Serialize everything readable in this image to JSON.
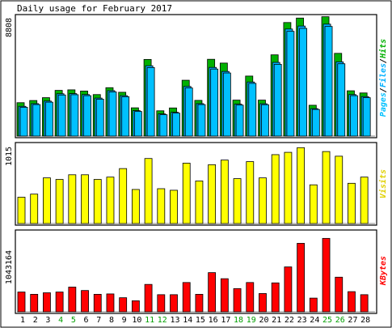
{
  "title": "Daily usage for February 2017",
  "days": [
    "1",
    "2",
    "3",
    "4",
    "5",
    "6",
    "7",
    "8",
    "9",
    "10",
    "11",
    "12",
    "13",
    "14",
    "15",
    "16",
    "17",
    "18",
    "19",
    "20",
    "21",
    "22",
    "23",
    "24",
    "25",
    "26",
    "27",
    "28"
  ],
  "weekend_days": [
    "4",
    "5",
    "11",
    "12",
    "18",
    "19",
    "25",
    "26"
  ],
  "colors": {
    "background": "#ffffff",
    "plot_background": "#ffffff",
    "border": "#000000",
    "hits": "#00b000",
    "files": "#00b0ff",
    "pages": "#00c0ff",
    "visits": "#ffff00",
    "kbytes": "#ff0000",
    "weekend_label": "#00a000",
    "weekday_label": "#000000"
  },
  "panels": {
    "hits": {
      "max_label": "8808",
      "legend": {
        "pages": "Pages",
        "sep1": "/",
        "files": "Files",
        "sep2": "/",
        "hits": "Hits"
      }
    },
    "visits": {
      "max_label": "1015",
      "legend": "Visits"
    },
    "kbytes": {
      "max_label": "1043164",
      "legend": "KBytes"
    }
  },
  "chart_data": [
    {
      "type": "bar",
      "title": "Daily usage for February 2017",
      "categories": [
        "1",
        "2",
        "3",
        "4",
        "5",
        "6",
        "7",
        "8",
        "9",
        "10",
        "11",
        "12",
        "13",
        "14",
        "15",
        "16",
        "17",
        "18",
        "19",
        "20",
        "21",
        "22",
        "23",
        "24",
        "25",
        "26",
        "27",
        "28"
      ],
      "ylim": [
        0,
        8808
      ],
      "series": [
        {
          "name": "Hits",
          "values": [
            2470,
            2630,
            2840,
            3380,
            3420,
            3330,
            3070,
            3580,
            3240,
            2090,
            5670,
            1870,
            2080,
            4130,
            2640,
            5680,
            5400,
            2660,
            4440,
            2660,
            6010,
            8400,
            8730,
            2280,
            8830,
            6120,
            3350,
            3190
          ]
        },
        {
          "name": "Files",
          "values": [
            2200,
            2400,
            2590,
            3130,
            3140,
            3070,
            2810,
            3360,
            2990,
            1880,
            5200,
            1640,
            1760,
            3670,
            2400,
            5080,
            4780,
            2360,
            4000,
            2390,
            5450,
            7920,
            8140,
            2030,
            8280,
            5490,
            3070,
            2920
          ]
        },
        {
          "name": "Pages",
          "values": [
            2130,
            2330,
            2510,
            3040,
            3060,
            2990,
            2730,
            3270,
            2910,
            1820,
            5070,
            1580,
            1700,
            3560,
            2330,
            4960,
            4670,
            2290,
            3900,
            2320,
            5310,
            7750,
            7970,
            1970,
            8110,
            5350,
            2990,
            2840
          ]
        }
      ]
    },
    {
      "type": "bar",
      "categories": [
        "1",
        "2",
        "3",
        "4",
        "5",
        "6",
        "7",
        "8",
        "9",
        "10",
        "11",
        "12",
        "13",
        "14",
        "15",
        "16",
        "17",
        "18",
        "19",
        "20",
        "21",
        "22",
        "23",
        "24",
        "25",
        "26",
        "27",
        "28"
      ],
      "ylim": [
        0,
        1015
      ],
      "series": [
        {
          "name": "Visits",
          "values": [
            340,
            380,
            590,
            570,
            630,
            630,
            570,
            600,
            710,
            440,
            840,
            450,
            430,
            780,
            550,
            760,
            820,
            580,
            800,
            590,
            890,
            920,
            980,
            500,
            930,
            870,
            520,
            600
          ]
        }
      ]
    },
    {
      "type": "bar",
      "categories": [
        "1",
        "2",
        "3",
        "4",
        "5",
        "6",
        "7",
        "8",
        "9",
        "10",
        "11",
        "12",
        "13",
        "14",
        "15",
        "16",
        "17",
        "18",
        "19",
        "20",
        "21",
        "22",
        "23",
        "24",
        "25",
        "26",
        "27",
        "28"
      ],
      "ylim": [
        0,
        1043164
      ],
      "series": [
        {
          "name": "KBytes",
          "values": [
            260000,
            230000,
            250000,
            260000,
            325000,
            280000,
            230000,
            235000,
            185000,
            145000,
            360000,
            225000,
            225000,
            385000,
            230000,
            515000,
            435000,
            305000,
            385000,
            240000,
            380000,
            590000,
            900000,
            180000,
            965000,
            455000,
            265000,
            225000
          ]
        }
      ]
    }
  ]
}
